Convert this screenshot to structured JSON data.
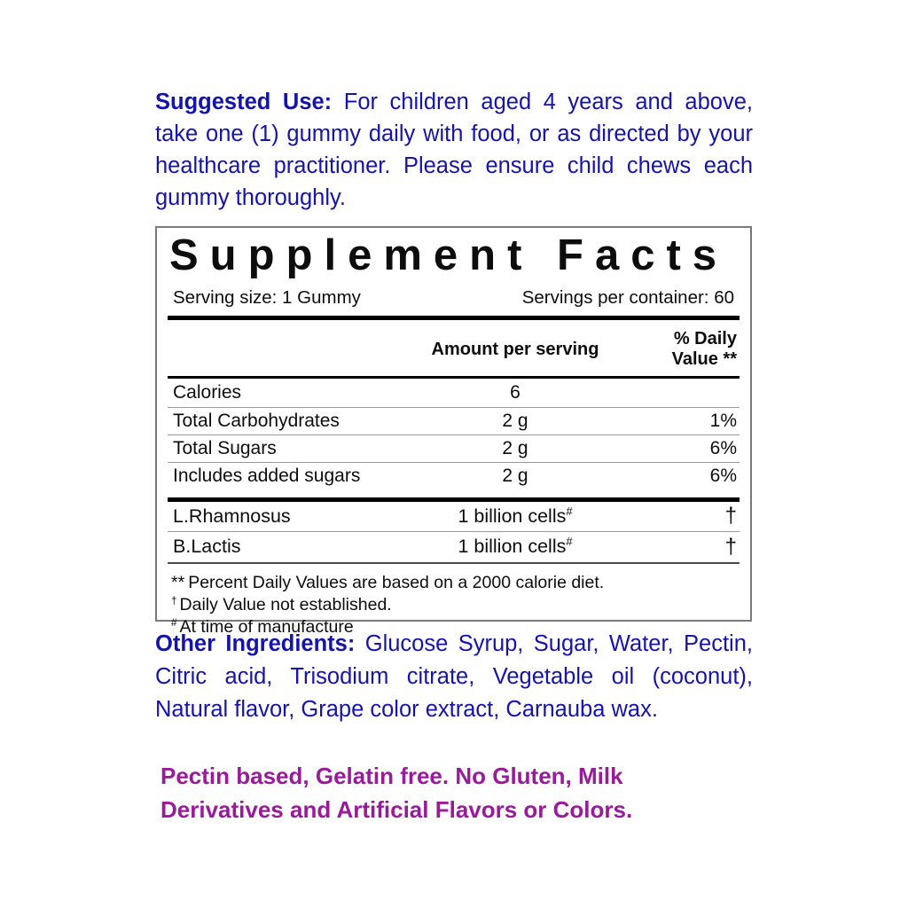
{
  "colors": {
    "ink_blue": "#1414ac",
    "ink_purple": "#991b9b",
    "ink_black": "#0d0d0d"
  },
  "suggested_use": {
    "lead": "Suggested Use:",
    "text": "For children aged 4 years and above, take one (1) gummy daily with food, or as directed by your healthcare practitioner. Please ensure child chews each gummy thoroughly."
  },
  "supplement_facts": {
    "title": "Supplement Facts",
    "serving_size": "Serving size: 1 Gummy",
    "servings_per_container": "Servings per container: 60",
    "columns": {
      "amount": "Amount per serving",
      "daily_value": "% Daily Value **"
    },
    "rows": [
      {
        "name": "Calories",
        "amount": "6",
        "dv": ""
      },
      {
        "name": "Total Carbohydrates",
        "amount": "2 g",
        "dv": "1%"
      },
      {
        "name": "Total Sugars",
        "amount": "2 g",
        "dv": "6%"
      },
      {
        "name": "Includes added sugars",
        "amount": "2 g",
        "dv": "6%"
      }
    ],
    "probiotic_rows": [
      {
        "name": "L.Rhamnosus",
        "amount": "1 billion cells",
        "amount_sup": "#",
        "dv": "†"
      },
      {
        "name": "B.Lactis",
        "amount": "1 billion cells",
        "amount_sup": "#",
        "dv": "†"
      }
    ],
    "footnotes": [
      {
        "marker": "**",
        "text": "Percent Daily Values are based on a 2000 calorie diet."
      },
      {
        "marker": "†",
        "text": "Daily Value not established."
      },
      {
        "marker": "#",
        "text": "At time of manufacture"
      }
    ]
  },
  "other_ingredients": {
    "lead": "Other Ingredients:",
    "text": "Glucose Syrup, Sugar, Water, Pectin, Citric acid, Trisodium citrate, Vegetable oil (coconut), Natural flavor, Grape color extract, Carnauba wax."
  },
  "dietary_note": "Pectin based, Gelatin free. No Gluten, Milk Derivatives and Artificial Flavors or Colors."
}
